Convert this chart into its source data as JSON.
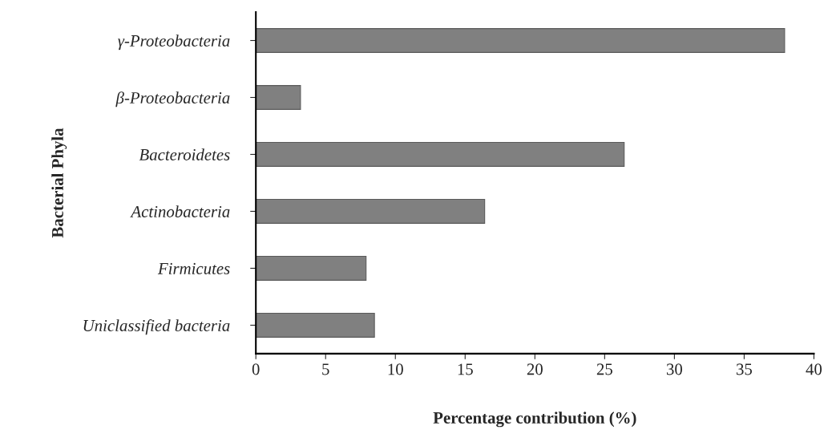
{
  "chart_data": {
    "type": "bar",
    "orientation": "horizontal",
    "xlabel": "Percentage contribution (%)",
    "ylabel": "Bacterial Phyla",
    "categories": [
      "γ-Proteobacteria",
      "β-Proteobacteria",
      "Bacteroidetes",
      "Actinobacteria",
      "Firmicutes",
      "Uniclassified bacteria"
    ],
    "values": [
      37.9,
      3.2,
      26.4,
      16.4,
      7.9,
      8.5
    ],
    "color": "#808080",
    "xlim": [
      0,
      40
    ],
    "xticks": [
      0,
      5,
      10,
      15,
      20,
      25,
      30,
      35,
      40
    ],
    "grid": false,
    "legend": false
  }
}
